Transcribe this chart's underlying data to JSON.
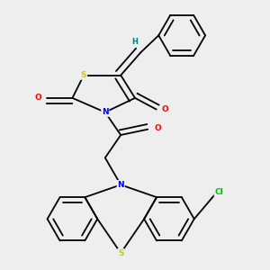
{
  "background_color": "#eeeeee",
  "atom_colors": {
    "S": "#cccc00",
    "N": "#0000ff",
    "O": "#ff0000",
    "Cl": "#00bb00",
    "C": "#000000",
    "H": "#008080"
  },
  "bond_color": "#000000",
  "lw": 1.3
}
